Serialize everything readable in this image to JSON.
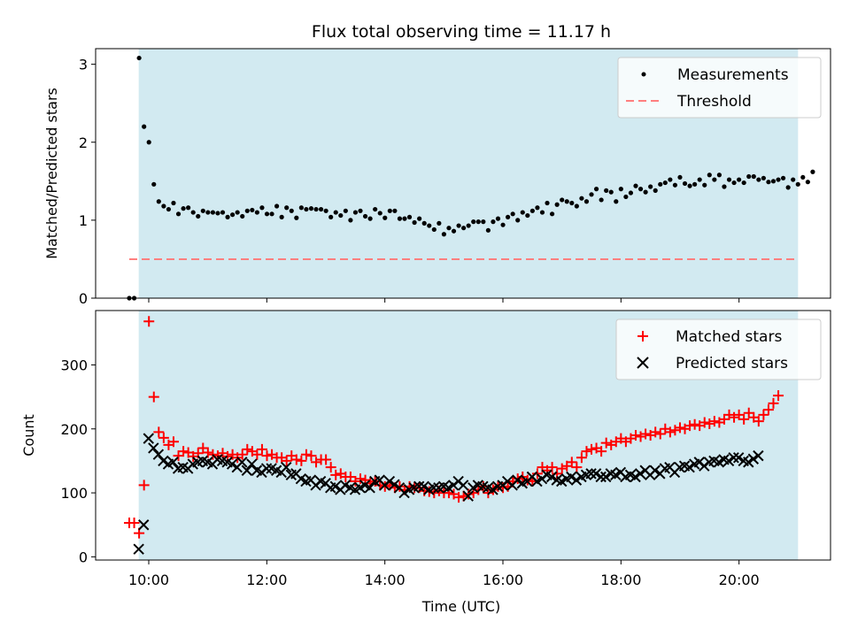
{
  "title": "Flux total observing time = 11.17 h",
  "colors": {
    "shade": "#add8e6",
    "measurement": "#000000",
    "threshold": "#ff7f7f",
    "matched": "#ff0000",
    "predicted": "#000000"
  },
  "chart_data": [
    {
      "type": "scatter",
      "ylabel": "Matched/Predicted stars",
      "xlim": [
        9.1,
        21.55
      ],
      "ylim": [
        0,
        3.2
      ],
      "yticks": [
        0,
        1,
        2,
        3
      ],
      "shaded_span": [
        9.83,
        21.0
      ],
      "threshold": {
        "value": 0.5,
        "x_range": [
          9.67,
          21.0
        ]
      },
      "legend": {
        "position": "top-right",
        "entries": [
          "Measurements",
          "Threshold"
        ]
      },
      "series": [
        {
          "name": "Measurements",
          "x_start": 9.67,
          "x_step": 0.0833,
          "values": [
            0,
            0,
            3.08,
            2.2,
            2.0,
            1.46,
            1.24,
            1.18,
            1.14,
            1.22,
            1.08,
            1.15,
            1.16,
            1.1,
            1.05,
            1.12,
            1.1,
            1.1,
            1.09,
            1.1,
            1.04,
            1.07,
            1.1,
            1.05,
            1.12,
            1.13,
            1.1,
            1.16,
            1.08,
            1.08,
            1.18,
            1.04,
            1.16,
            1.12,
            1.03,
            1.16,
            1.14,
            1.15,
            1.14,
            1.14,
            1.12,
            1.04,
            1.1,
            1.06,
            1.12,
            1.0,
            1.1,
            1.12,
            1.05,
            1.02,
            1.14,
            1.09,
            1.03,
            1.12,
            1.12,
            1.02,
            1.02,
            1.04,
            0.97,
            1.02,
            0.96,
            0.93,
            0.88,
            0.96,
            0.82,
            0.9,
            0.86,
            0.93,
            0.9,
            0.93,
            0.98,
            0.98,
            0.98,
            0.87,
            0.98,
            1.02,
            0.94,
            1.04,
            1.08,
            1.0,
            1.1,
            1.06,
            1.12,
            1.16,
            1.1,
            1.22,
            1.08,
            1.2,
            1.26,
            1.24,
            1.22,
            1.18,
            1.28,
            1.24,
            1.33,
            1.4,
            1.26,
            1.38,
            1.36,
            1.24,
            1.4,
            1.3,
            1.35,
            1.44,
            1.4,
            1.36,
            1.43,
            1.38,
            1.46,
            1.48,
            1.52,
            1.45,
            1.55,
            1.47,
            1.44,
            1.46,
            1.52,
            1.45,
            1.58,
            1.52,
            1.58,
            1.43,
            1.52,
            1.48,
            1.52,
            1.48,
            1.56,
            1.56,
            1.52,
            1.54,
            1.49,
            1.5,
            1.52,
            1.54,
            1.42,
            1.52,
            1.46,
            1.55,
            1.49,
            1.62
          ]
        }
      ]
    },
    {
      "type": "scatter",
      "xlabel": "Time (UTC)",
      "ylabel": "Count",
      "xlim": [
        9.1,
        21.55
      ],
      "ylim": [
        -5,
        385
      ],
      "yticks": [
        0,
        100,
        200,
        300
      ],
      "xticks": [
        10,
        12,
        14,
        16,
        18,
        20
      ],
      "xtick_labels": [
        "10:00",
        "12:00",
        "14:00",
        "16:00",
        "18:00",
        "20:00"
      ],
      "shaded_span": [
        9.83,
        21.0
      ],
      "legend": {
        "position": "top-right",
        "entries": [
          "Matched stars",
          "Predicted stars"
        ]
      },
      "series": [
        {
          "name": "Matched stars",
          "marker": "+",
          "x_start": 9.67,
          "x_step": 0.0833,
          "values": [
            53,
            53,
            37,
            112,
            368,
            250,
            195,
            186,
            175,
            180,
            158,
            165,
            163,
            157,
            162,
            170,
            163,
            160,
            158,
            162,
            157,
            160,
            155,
            160,
            168,
            165,
            160,
            168,
            158,
            160,
            155,
            155,
            150,
            158,
            152,
            150,
            160,
            158,
            148,
            152,
            152,
            140,
            128,
            130,
            125,
            125,
            118,
            122,
            120,
            115,
            118,
            112,
            110,
            112,
            108,
            110,
            105,
            110,
            108,
            108,
            103,
            102,
            100,
            103,
            100,
            100,
            98,
            93,
            95,
            98,
            100,
            105,
            110,
            100,
            105,
            110,
            108,
            110,
            118,
            122,
            125,
            120,
            118,
            130,
            140,
            135,
            140,
            130,
            138,
            142,
            148,
            140,
            155,
            165,
            168,
            170,
            165,
            178,
            175,
            180,
            185,
            180,
            185,
            190,
            188,
            192,
            190,
            195,
            192,
            200,
            195,
            198,
            202,
            200,
            205,
            207,
            205,
            210,
            208,
            212,
            210,
            215,
            222,
            218,
            222,
            215,
            225,
            218,
            212,
            222,
            230,
            240,
            252
          ]
        },
        {
          "name": "Predicted stars",
          "marker": "x",
          "x_start": 9.83,
          "x_step": 0.0833,
          "values": [
            12,
            50,
            185,
            170,
            160,
            150,
            145,
            148,
            138,
            140,
            138,
            145,
            148,
            150,
            148,
            145,
            152,
            150,
            148,
            145,
            140,
            148,
            135,
            145,
            135,
            132,
            138,
            138,
            135,
            132,
            140,
            128,
            130,
            122,
            118,
            120,
            112,
            118,
            115,
            108,
            110,
            105,
            112,
            108,
            105,
            108,
            112,
            108,
            118,
            120,
            112,
            118,
            113,
            108,
            100,
            105,
            108,
            110,
            110,
            105,
            108,
            108,
            110,
            108,
            112,
            118,
            112,
            95,
            108,
            112,
            110,
            108,
            105,
            110,
            112,
            118,
            112,
            120,
            115,
            118,
            125,
            118,
            122,
            128,
            125,
            120,
            118,
            122,
            125,
            120,
            125,
            128,
            130,
            130,
            125,
            125,
            130,
            128,
            132,
            125,
            128,
            125,
            130,
            135,
            128,
            135,
            130,
            138,
            140,
            132,
            140,
            142,
            140,
            145,
            148,
            142,
            148,
            150,
            148,
            152,
            150,
            155,
            155,
            150,
            148,
            153,
            158
          ]
        }
      ]
    }
  ]
}
